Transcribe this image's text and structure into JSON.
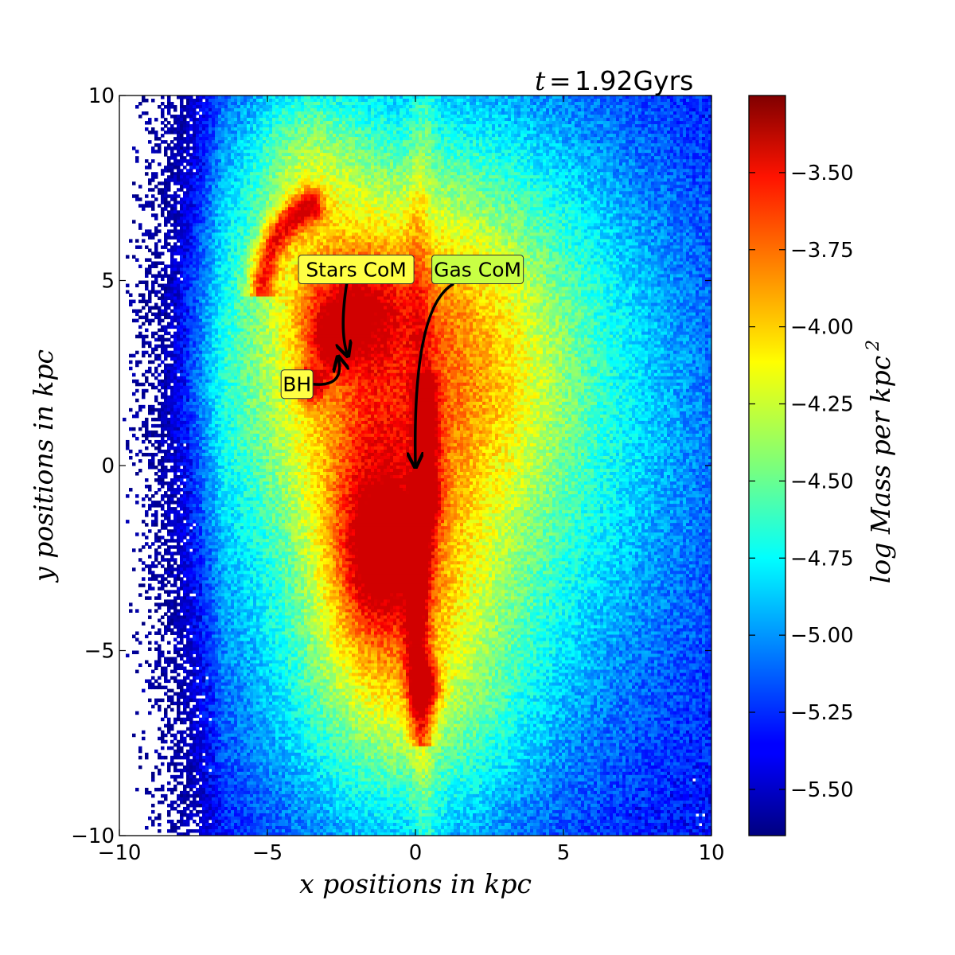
{
  "chart_data": {
    "type": "heatmap",
    "title": {
      "variable": "t",
      "equals": "=",
      "value": "1.92Gyrs"
    },
    "xlabel": "x positions in kpc",
    "ylabel": "y positions in kpc",
    "colorbar_label": "log Mass per kpc",
    "colorbar_label_exponent": "2",
    "xlim": [
      -10,
      10
    ],
    "ylim": [
      -10,
      10
    ],
    "x_ticks": [
      -10,
      -5,
      0,
      5,
      10
    ],
    "y_ticks": [
      -10,
      -5,
      0,
      5,
      10
    ],
    "x_tick_labels": [
      "−10",
      "−5",
      "0",
      "5",
      "10"
    ],
    "y_tick_labels": [
      "−10",
      "−5",
      "0",
      "5",
      "10"
    ],
    "colorbar_range": [
      -5.65,
      -3.25
    ],
    "colorbar_ticks": [
      -3.5,
      -3.75,
      -4.0,
      -4.25,
      -4.5,
      -4.75,
      -5.0,
      -5.25,
      -5.5
    ],
    "colorbar_tick_labels": [
      "−3.50",
      "−3.75",
      "−4.00",
      "−4.25",
      "−4.50",
      "−4.75",
      "−5.00",
      "−5.25",
      "−5.50"
    ],
    "colormap": "jet",
    "grid": false,
    "annotations": [
      {
        "text": "Stars CoM",
        "label_at": [
          -2.0,
          5.3
        ],
        "points_to": [
          -2.3,
          3.0
        ],
        "box_color": "#ffff44"
      },
      {
        "text": "Gas CoM",
        "label_at": [
          2.1,
          5.3
        ],
        "points_to": [
          0.0,
          0.0
        ],
        "box_color": "#c8ff44"
      },
      {
        "text": "BH",
        "label_at": [
          -4.0,
          2.2
        ],
        "points_to": [
          -2.6,
          2.9
        ],
        "box_color": "#ffff44"
      }
    ]
  }
}
